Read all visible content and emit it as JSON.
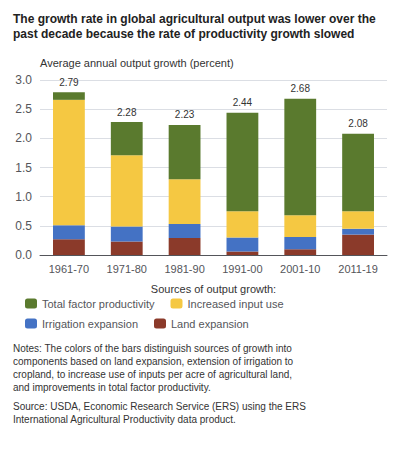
{
  "chart_data": {
    "type": "bar",
    "title": "The growth rate in global agricultural output was lower over the past decade because the rate of productivity growth slowed",
    "ylabel": "Average annual output growth (percent)",
    "xlabel": "Sources of output growth:",
    "categories": [
      "1961-70",
      "1971-80",
      "1981-90",
      "1991-00",
      "2001-10",
      "2011-19"
    ],
    "series": [
      {
        "name": "Land expansion",
        "color": "#8b3a2a",
        "values": [
          0.27,
          0.23,
          0.29,
          0.06,
          0.1,
          0.35
        ]
      },
      {
        "name": "Irrigation expansion",
        "color": "#4472c4",
        "values": [
          0.24,
          0.26,
          0.24,
          0.24,
          0.21,
          0.1
        ]
      },
      {
        "name": "Increased input use",
        "color": "#f5c842",
        "values": [
          2.15,
          1.22,
          0.77,
          0.45,
          0.37,
          0.3
        ]
      },
      {
        "name": "Total factor productivity",
        "color": "#5a7a2e",
        "values": [
          0.13,
          0.57,
          0.93,
          1.69,
          2.0,
          1.33
        ]
      }
    ],
    "totals": [
      2.79,
      2.28,
      2.23,
      2.44,
      2.68,
      2.08
    ],
    "stacked": true,
    "ylim": [
      0.0,
      3.0
    ],
    "yticks": [
      {
        "value": 0.0,
        "label": "0.0"
      },
      {
        "value": 0.5,
        "label": "0.5"
      },
      {
        "value": 1.0,
        "label": "1.0"
      },
      {
        "value": 1.5,
        "label": "1.5"
      },
      {
        "value": 2.0,
        "label": "2.0"
      },
      {
        "value": 2.5,
        "label": "2.5"
      },
      {
        "value": 3.0,
        "label": "3.0"
      }
    ],
    "grid": true,
    "legend": "bottom",
    "annotations": [
      "Notes: The colors of the bars distinguish sources of growth into components based on land expansion, extension of irrigation to cropland, to increase use of inputs per acre of agricultural land, and improvements in total factor productivity.",
      "Source: USDA, Economic Research Service (ERS) using the ERS International Agricultural Productivity data product."
    ]
  }
}
